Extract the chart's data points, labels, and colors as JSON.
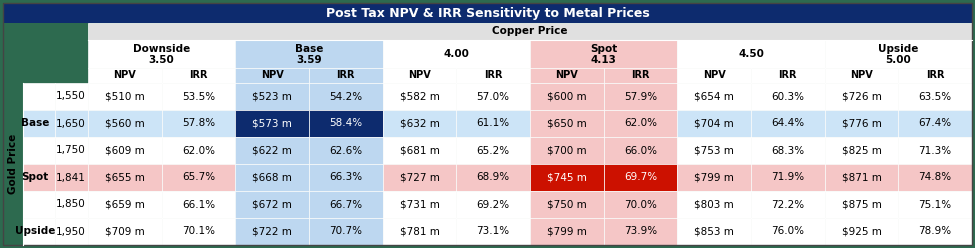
{
  "title": "Post Tax NPV & IRR Sensitivity to Metal Prices",
  "title_bg": "#0d2b6e",
  "title_color": "white",
  "copper_label": "Copper Price",
  "gold_label": "Gold Price",
  "outer_bg": "#2d6a4f",
  "header_row_bg": "#d9e8f5",
  "copper_header_bg": "#e0e0e0",
  "group_bg": [
    "#ffffff",
    "#bdd7f0",
    "#ffffff",
    "#f5c6c6",
    "#ffffff",
    "#ffffff"
  ],
  "group_labels": [
    "Downside\n3.50",
    "Base\n3.59",
    "4.00",
    "Spot\n4.13",
    "4.50",
    "Upside\n5.00"
  ],
  "row_names": [
    "",
    "Base",
    "",
    "Spot",
    "",
    "Upside"
  ],
  "row_nums": [
    "1,550",
    "1,650",
    "1,750",
    "1,841",
    "1,850",
    "1,950"
  ],
  "row_bg": [
    "#ffffff",
    "#cce4f7",
    "#ffffff",
    "#f5c6c6",
    "#ffffff",
    "#ffffff"
  ],
  "base_col_bg": "#bdd7f0",
  "base_intersect_bg": "#0d2b6e",
  "base_intersect_color": "white",
  "spot_col_bg": "#f5c6c6",
  "spot_intersect_bg": "#cc1100",
  "spot_intersect_color": "white",
  "data": [
    [
      "$510 m",
      "53.5%",
      "$523 m",
      "54.2%",
      "$582 m",
      "57.0%",
      "$600 m",
      "57.9%",
      "$654 m",
      "60.3%",
      "$726 m",
      "63.5%"
    ],
    [
      "$560 m",
      "57.8%",
      "$573 m",
      "58.4%",
      "$632 m",
      "61.1%",
      "$650 m",
      "62.0%",
      "$704 m",
      "64.4%",
      "$776 m",
      "67.4%"
    ],
    [
      "$609 m",
      "62.0%",
      "$622 m",
      "62.6%",
      "$681 m",
      "65.2%",
      "$700 m",
      "66.0%",
      "$753 m",
      "68.3%",
      "$825 m",
      "71.3%"
    ],
    [
      "$655 m",
      "65.7%",
      "$668 m",
      "66.3%",
      "$727 m",
      "68.9%",
      "$745 m",
      "69.7%",
      "$799 m",
      "71.9%",
      "$871 m",
      "74.8%"
    ],
    [
      "$659 m",
      "66.1%",
      "$672 m",
      "66.7%",
      "$731 m",
      "69.2%",
      "$750 m",
      "70.0%",
      "$803 m",
      "72.2%",
      "$875 m",
      "75.1%"
    ],
    [
      "$709 m",
      "70.1%",
      "$722 m",
      "70.7%",
      "$781 m",
      "73.1%",
      "$799 m",
      "73.9%",
      "$853 m",
      "76.0%",
      "$925 m",
      "78.9%"
    ]
  ],
  "grid_color": "#ffffff",
  "text_color": "#000000",
  "font_size_title": 9,
  "font_size_header": 7.5,
  "font_size_data": 7.5,
  "font_size_subheader": 7,
  "font_size_gold": 7.5
}
